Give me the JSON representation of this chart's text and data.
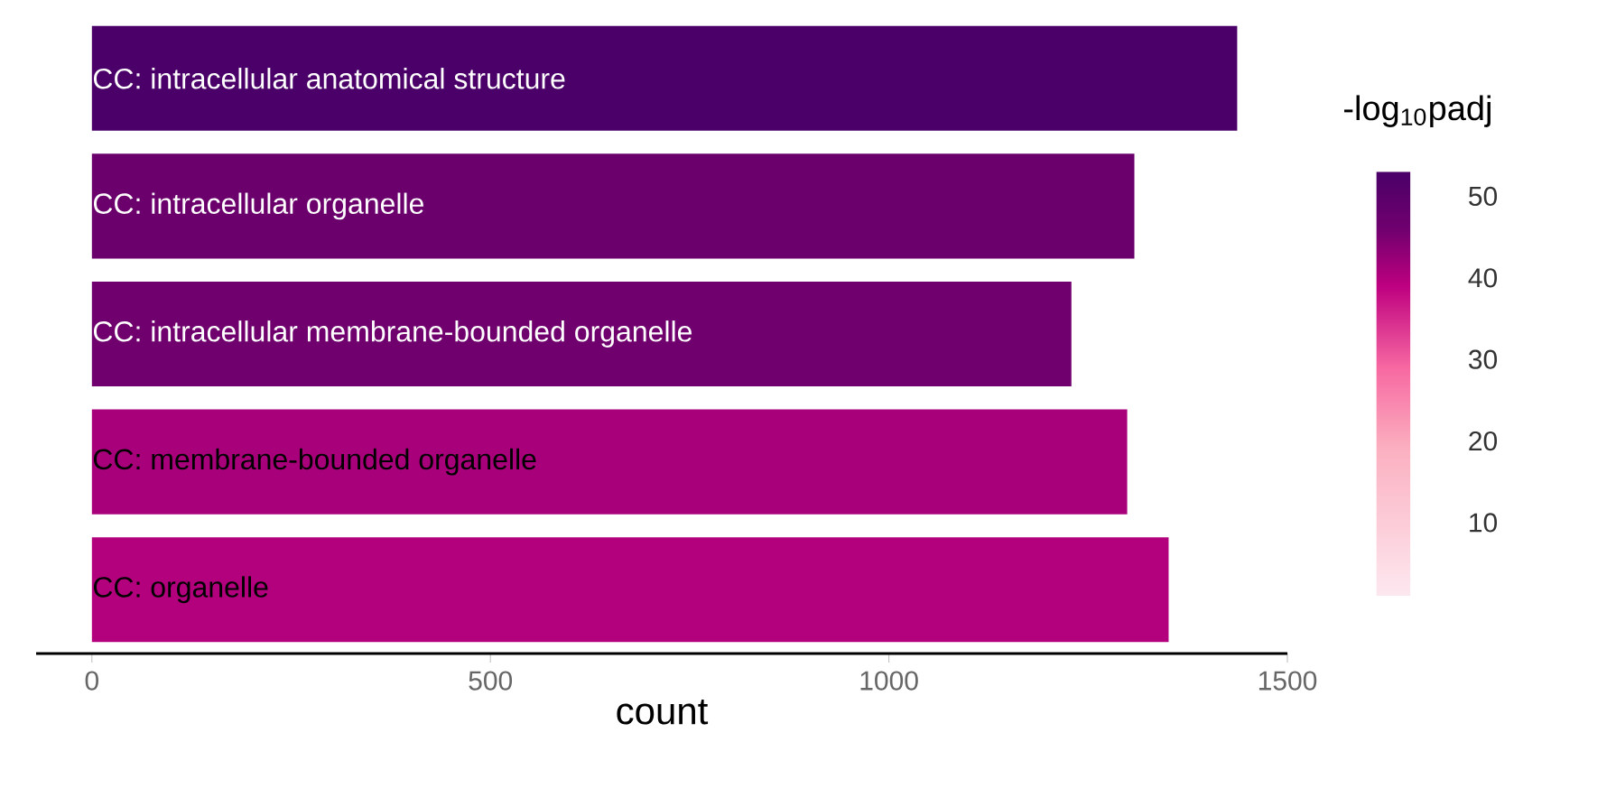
{
  "chart_data": {
    "type": "bar",
    "orientation": "horizontal",
    "xlabel": "count",
    "clabel": "-log$_{10}$padj",
    "categories": [
      "CC: intracellular anatomical structure",
      "CC: intracellular organelle",
      "CC: intracellular membrane-bounded organelle",
      "CC: membrane-bounded organelle",
      "CC: organelle"
    ],
    "values": [
      1437,
      1308,
      1229,
      1299,
      1351
    ],
    "cvalues": [
      53,
      47,
      46,
      41,
      40
    ],
    "xlim": [
      -70,
      1500
    ],
    "xticks": [
      0,
      500,
      1000,
      1500
    ],
    "clim": [
      1,
      53
    ],
    "cticks": [
      10,
      20,
      30,
      40,
      50
    ],
    "grid": false
  }
}
